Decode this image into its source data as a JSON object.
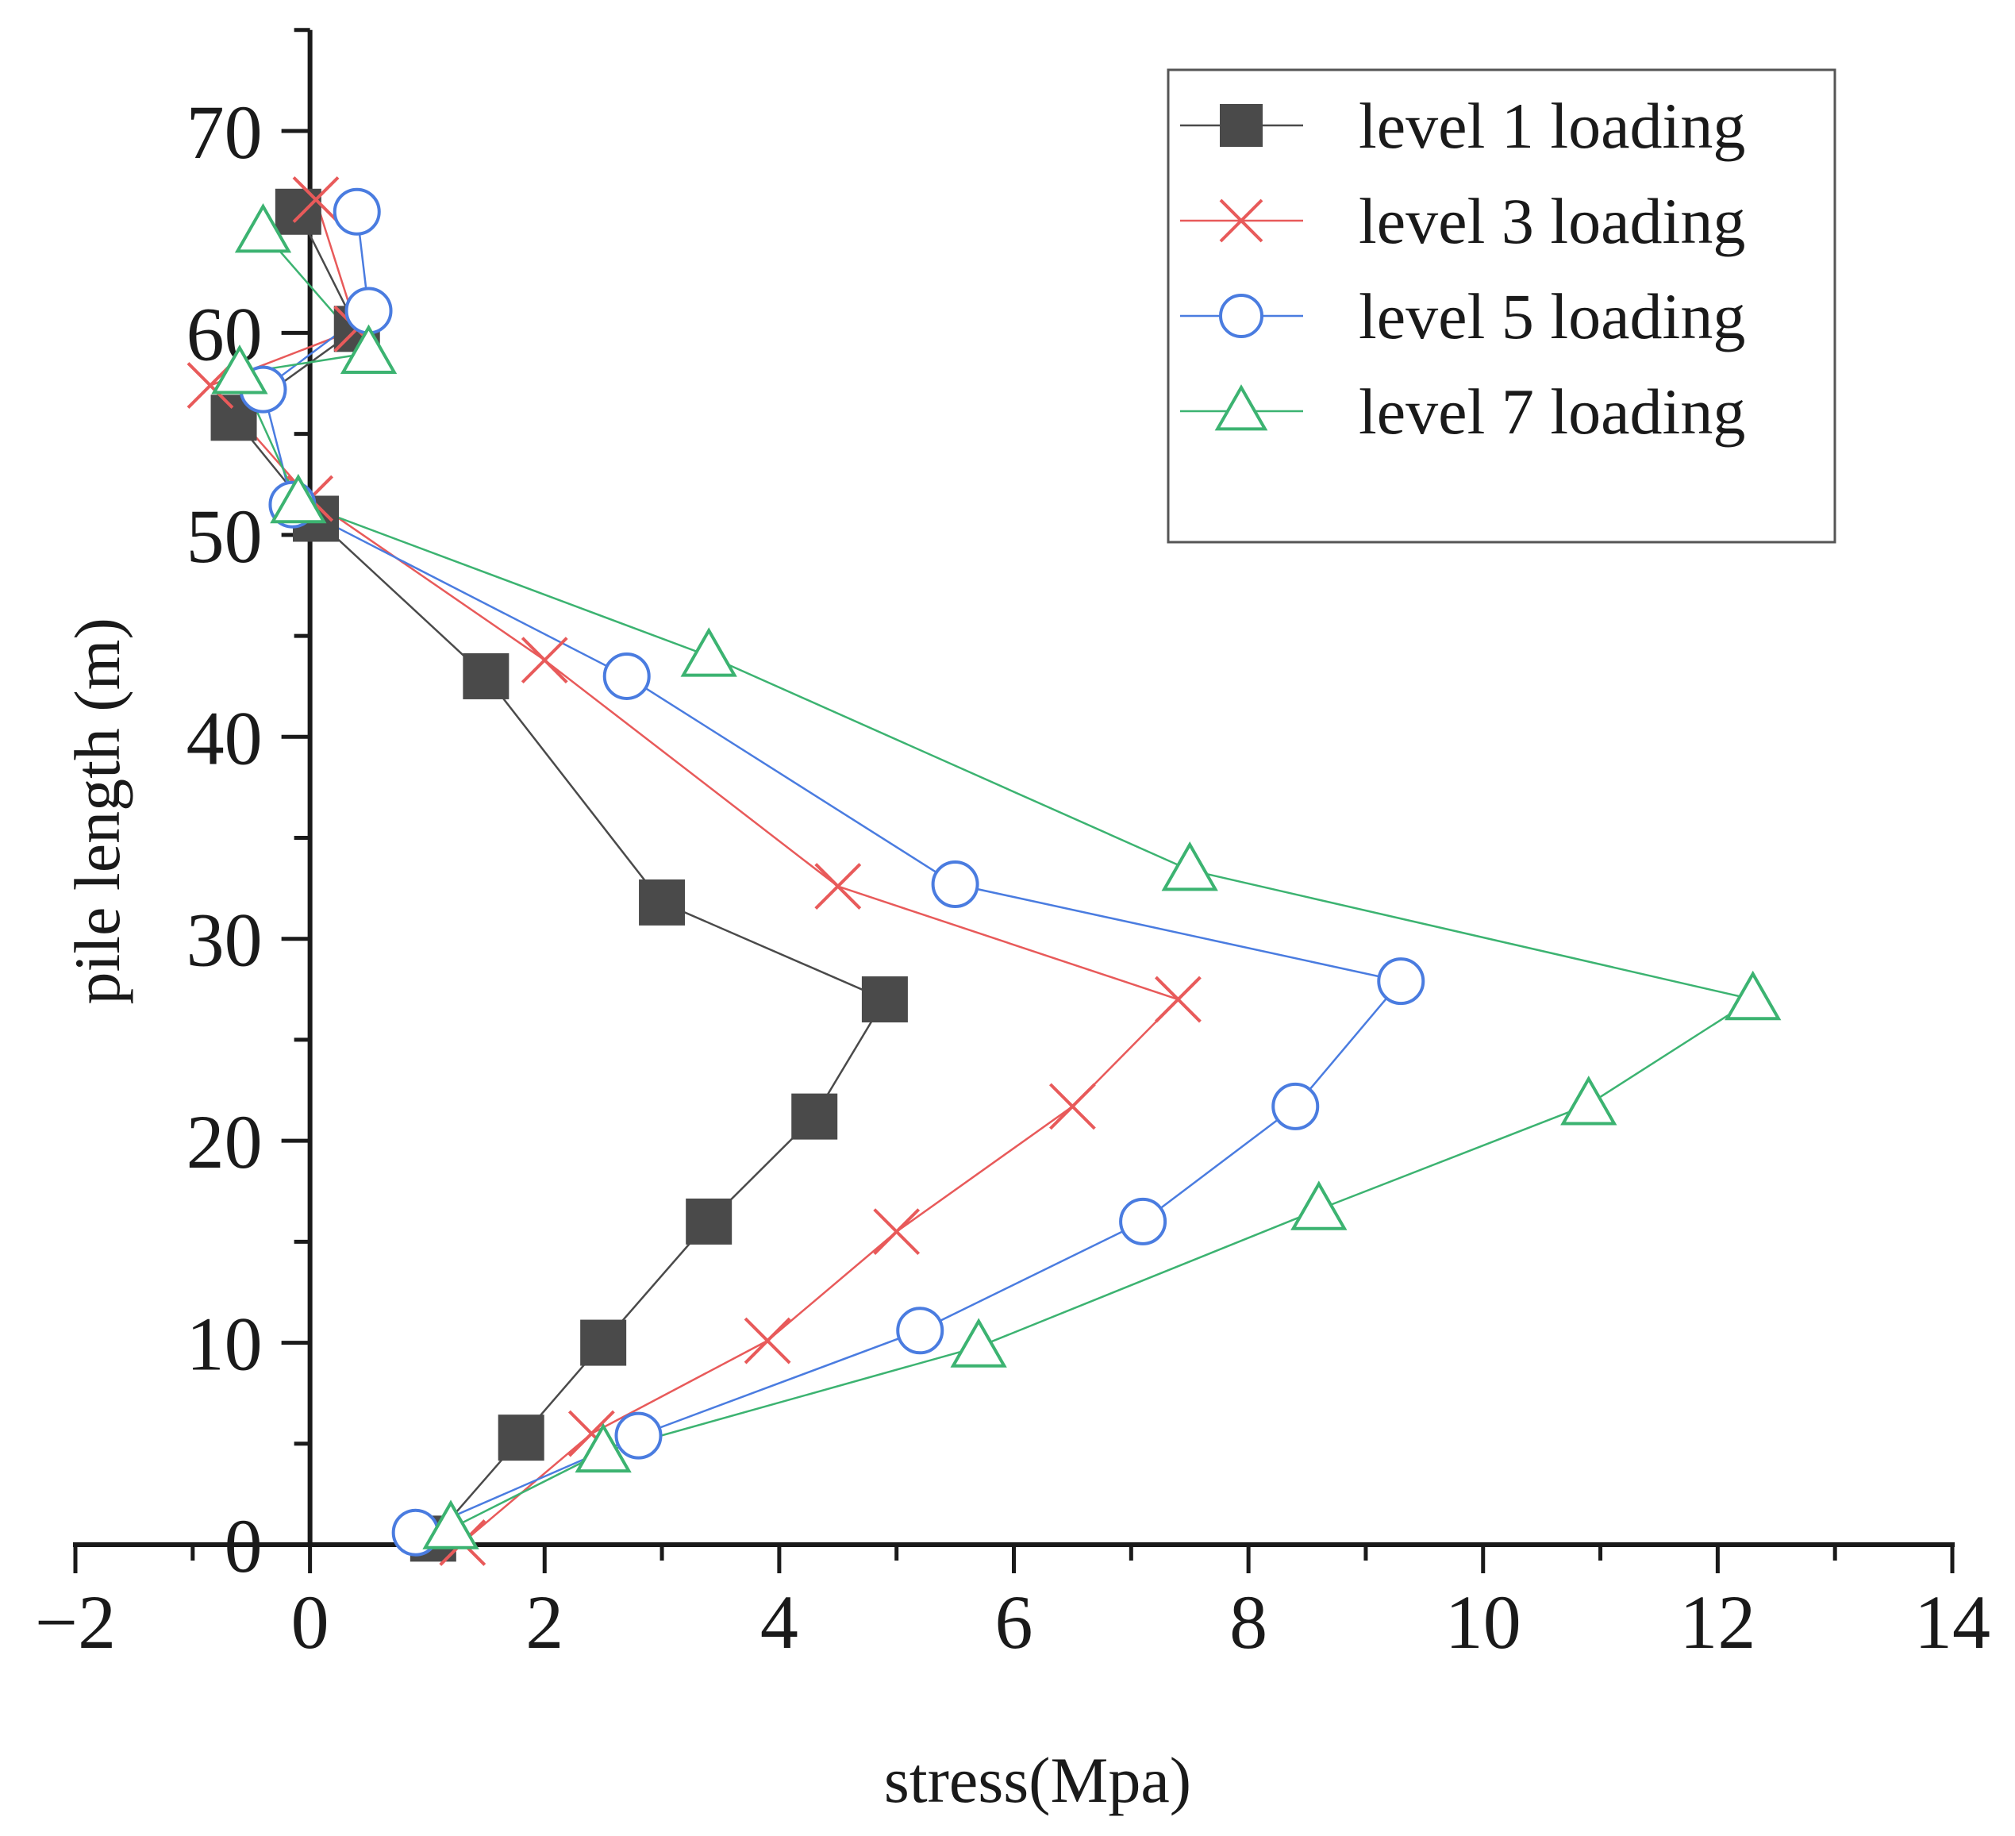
{
  "chart_data": {
    "type": "line",
    "title": "",
    "xlabel": "stress(Mpa)",
    "ylabel": "pile length (m)",
    "xlim": [
      -2,
      14
    ],
    "ylim": [
      0,
      75
    ],
    "xticks": [
      -2,
      0,
      2,
      4,
      6,
      8,
      10,
      12,
      14
    ],
    "yticks": [
      0,
      10,
      20,
      30,
      40,
      50,
      60,
      70
    ],
    "x_tick_labels": [
      "−2",
      "0",
      "2",
      "4",
      "6",
      "8",
      "10",
      "12",
      "14"
    ],
    "y_tick_labels": [
      "0",
      "10",
      "20",
      "30",
      "40",
      "50",
      "60",
      "70"
    ],
    "grid": false,
    "legend_position": "top-right",
    "series": [
      {
        "name": "level 1 loading",
        "color": "#4a4a4a",
        "marker": "square-filled",
        "points": [
          [
            1.05,
            0.3
          ],
          [
            1.8,
            5.3
          ],
          [
            2.5,
            10.0
          ],
          [
            3.4,
            16.0
          ],
          [
            4.3,
            21.2
          ],
          [
            4.9,
            27.0
          ],
          [
            3.0,
            31.8
          ],
          [
            1.5,
            43.0
          ],
          [
            0.05,
            50.8
          ],
          [
            -0.65,
            55.8
          ],
          [
            0.4,
            60.2
          ],
          [
            -0.1,
            66.0
          ]
        ]
      },
      {
        "name": "level 3 loading",
        "color": "#e85a5a",
        "marker": "x",
        "points": [
          [
            1.3,
            0.1
          ],
          [
            2.4,
            5.5
          ],
          [
            3.9,
            10.1
          ],
          [
            5.0,
            15.5
          ],
          [
            6.5,
            21.7
          ],
          [
            7.4,
            27.0
          ],
          [
            4.5,
            32.6
          ],
          [
            2.0,
            43.8
          ],
          [
            0.0,
            51.8
          ],
          [
            -0.85,
            57.4
          ],
          [
            0.4,
            60.2
          ],
          [
            0.05,
            66.6
          ]
        ]
      },
      {
        "name": "level 5 loading",
        "color": "#4a7ce0",
        "marker": "circle-open",
        "points": [
          [
            0.9,
            0.6
          ],
          [
            2.8,
            5.4
          ],
          [
            5.2,
            10.6
          ],
          [
            7.1,
            16.0
          ],
          [
            8.4,
            21.7
          ],
          [
            9.3,
            27.9
          ],
          [
            5.5,
            32.7
          ],
          [
            2.7,
            43.0
          ],
          [
            -0.15,
            51.5
          ],
          [
            -0.4,
            57.2
          ],
          [
            0.5,
            61.1
          ],
          [
            0.4,
            66.0
          ]
        ]
      },
      {
        "name": "level 7 loading",
        "color": "#3cb371",
        "marker": "triangle-open",
        "points": [
          [
            1.2,
            0.8
          ],
          [
            2.5,
            4.6
          ],
          [
            5.7,
            9.8
          ],
          [
            8.6,
            16.6
          ],
          [
            10.9,
            21.8
          ],
          [
            12.3,
            27.0
          ],
          [
            7.5,
            33.4
          ],
          [
            3.4,
            44.0
          ],
          [
            -0.1,
            51.6
          ],
          [
            -0.6,
            58.0
          ],
          [
            0.5,
            59.0
          ],
          [
            -0.4,
            65.0
          ]
        ]
      }
    ]
  }
}
